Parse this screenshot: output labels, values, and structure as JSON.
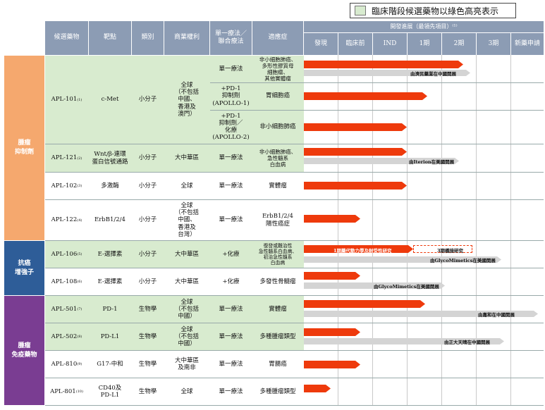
{
  "legend": {
    "text": "臨床階段候選藥物以綠色高亮表示",
    "color": "#d8ebcf"
  },
  "header": {
    "candidate": "候選藥物",
    "target": "靶點",
    "type": "類別",
    "rights": "商業權利",
    "therapy": "單一療法／\n聯合療法",
    "indication": "適應症",
    "progress": "開發進展（最領先項目）⁽¹⁾",
    "stages": [
      "發現",
      "臨床前",
      "IND",
      "1期",
      "2期",
      "3期",
      "新藥申請"
    ]
  },
  "categories": [
    {
      "label": "腫瘤\n抑制劑",
      "color": "#f5a86e"
    },
    {
      "label": "抗癌\n增強子",
      "color": "#2e5d98"
    },
    {
      "label": "腫瘤\n免疫藥物",
      "color": "#7a3d92"
    }
  ],
  "rows": [
    {
      "drug": "APL-101",
      "note": "(1)",
      "target": "c-Met",
      "type": "小分子",
      "rights": "全球\n（不包括\n中國、\n香港及\n澳門）",
      "therapy": "單一療法",
      "indication": "非小細胞肺癌、\n多形性膠質母\n細胞瘤、\n其他實體瘤",
      "clinical": true
    },
    {
      "drug": "",
      "note": "",
      "target": "",
      "type": "",
      "rights": "",
      "therapy": "+PD-1\n抑制劑\n(APOLLO-1)",
      "indication": "胃細胞癌",
      "clinical": true
    },
    {
      "drug": "",
      "note": "",
      "target": "",
      "type": "",
      "rights": "",
      "therapy": "+PD-1\n抑制劑／\n化療\n(APOLLO-2)",
      "indication": "非小細胞肺癌",
      "clinical": true
    },
    {
      "drug": "APL-121",
      "note": "(2)",
      "target": "Wnt/β-連環\n蛋白信號通路",
      "type": "小分子",
      "rights": "大中華區",
      "therapy": "單一療法",
      "indication": "非小細胞肺癌、\n急性髓系\n白血病",
      "clinical": true
    },
    {
      "drug": "APL-102",
      "note": "(3)",
      "target": "多激酶",
      "type": "小分子",
      "rights": "全球",
      "therapy": "單一療法",
      "indication": "實體瘤",
      "clinical": false
    },
    {
      "drug": "APL-122",
      "note": "(4)",
      "target": "ErbB1/2/4",
      "type": "小分子",
      "rights": "全球\n（不包括\n中國、\n香港及\n台灣）",
      "therapy": "單一療法",
      "indication": "ErbB1/2/4\n陽性癌症",
      "clinical": false
    },
    {
      "drug": "APL-106",
      "note": "(5)",
      "target": "E-選擇素",
      "type": "小分子",
      "rights": "大中華區",
      "therapy": "+化療",
      "indication": "復發或難治性\n急性髓系白血病、\n初治急性髓系\n白血病",
      "clinical": true
    },
    {
      "drug": "APL-108",
      "note": "(6)",
      "target": "E-選擇素",
      "type": "小分子",
      "rights": "大中華區",
      "therapy": "+化療",
      "indication": "多發性骨髓瘤",
      "clinical": false
    },
    {
      "drug": "APL-501",
      "note": "(7)",
      "target": "PD-1",
      "type": "生物學",
      "rights": "全球\n（不包括\n中國）",
      "therapy": "單一療法",
      "indication": "實體瘤",
      "clinical": true
    },
    {
      "drug": "APL-502",
      "note": "(8)",
      "target": "PD-L1",
      "type": "生物學",
      "rights": "全球\n（不包括\n中國）",
      "therapy": "單一療法",
      "indication": "多種腫瘤類型",
      "clinical": true
    },
    {
      "drug": "APL-810",
      "note": "(9)",
      "target": "G17-中和",
      "type": "生物學",
      "rights": "大中華區\n及南非",
      "therapy": "單一療法",
      "indication": "胃腸癌",
      "clinical": false
    },
    {
      "drug": "APL-801",
      "note": "(10)",
      "target": "CD40及\nPD-L1",
      "type": "生物學",
      "rights": "全球",
      "therapy": "單一療法",
      "indication": "多種腫瘤類型",
      "clinical": false
    }
  ],
  "bar_labels": {
    "apl101": "由濟民藥業在中國開展",
    "apl121": "由Iterion在美國開展",
    "apl106_red": "1期藥代動力學及耐受性研究",
    "apl106_dashed": "3期橋接研究",
    "apl106_grey": "由GlycoMimetics在美國開展",
    "apl108": "由GlycoMimetics在美國開展",
    "apl501": "由嘉和在中國開展",
    "apl502": "由正大天晴在中國開展"
  },
  "colors": {
    "bar": "#ee3a0c",
    "header": "#8c9cb4",
    "shadow": "#d4d4d4"
  }
}
